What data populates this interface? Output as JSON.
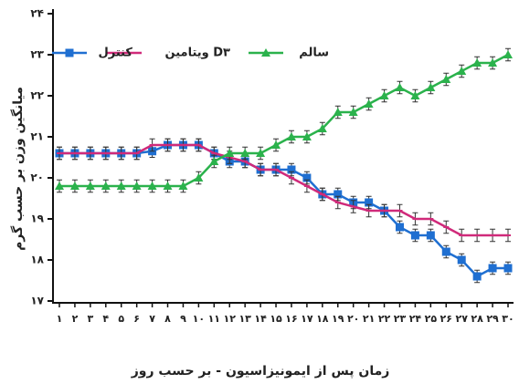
{
  "chart_data": {
    "type": "line",
    "x_label": "زمان پس از ایمونیزاسیون - بر حسب روز",
    "y_label": "میانگین وزن بر حسب گرم",
    "categories": [
      "۱",
      "۲",
      "۳",
      "۴",
      "۵",
      "۶",
      "۷",
      "۸",
      "۹",
      "۱۰",
      "۱۱",
      "۱۲",
      "۱۳",
      "۱۴",
      "۱۵",
      "۱۶",
      "۱۷",
      "۱۸",
      "۱۹",
      "۲۰",
      "۲۱",
      "۲۲",
      "۲۳",
      "۲۴",
      "۲۵",
      "۲۶",
      "۲۷",
      "۲۸",
      "۲۹",
      "۳۰"
    ],
    "ylim": [
      17,
      24
    ],
    "yticks": [
      {
        "value": 17,
        "label": "۱۷"
      },
      {
        "value": 18,
        "label": "۱۸"
      },
      {
        "value": 19,
        "label": "۱۹"
      },
      {
        "value": 20,
        "label": "۲۰"
      },
      {
        "value": 21,
        "label": "۲۱"
      },
      {
        "value": 22,
        "label": "۲۲"
      },
      {
        "value": 23,
        "label": "۲۳"
      },
      {
        "value": 24,
        "label": "۲۴"
      }
    ],
    "series": [
      {
        "name": "کنترل",
        "color": "#1f6fd1",
        "marker": "square",
        "error": 0.15,
        "values": [
          20.6,
          20.6,
          20.6,
          20.6,
          20.6,
          20.6,
          20.65,
          20.8,
          20.8,
          20.8,
          20.6,
          20.4,
          20.4,
          20.2,
          20.2,
          20.2,
          20.0,
          19.6,
          19.6,
          19.4,
          19.4,
          19.2,
          18.8,
          18.6,
          18.6,
          18.2,
          18.0,
          17.6,
          17.8,
          17.8
        ]
      },
      {
        "name": "ویتامین D۳",
        "color": "#d02a7a",
        "marker": "dash",
        "error": 0.15,
        "values": [
          20.6,
          20.6,
          20.6,
          20.6,
          20.6,
          20.6,
          20.8,
          20.8,
          20.8,
          20.8,
          20.6,
          20.5,
          20.4,
          20.2,
          20.2,
          20.0,
          19.8,
          19.6,
          19.4,
          19.3,
          19.2,
          19.2,
          19.2,
          19.0,
          19.0,
          18.8,
          18.6,
          18.6,
          18.6,
          18.6
        ]
      },
      {
        "name": "سالم",
        "color": "#2bb24c",
        "marker": "triangle",
        "error": 0.15,
        "values": [
          19.8,
          19.8,
          19.8,
          19.8,
          19.8,
          19.8,
          19.8,
          19.8,
          19.8,
          20.0,
          20.4,
          20.6,
          20.6,
          20.6,
          20.8,
          21.0,
          21.0,
          21.2,
          21.6,
          21.6,
          21.8,
          22.0,
          22.2,
          22.0,
          22.2,
          22.4,
          22.6,
          22.8,
          22.8,
          23.0
        ]
      }
    ]
  }
}
